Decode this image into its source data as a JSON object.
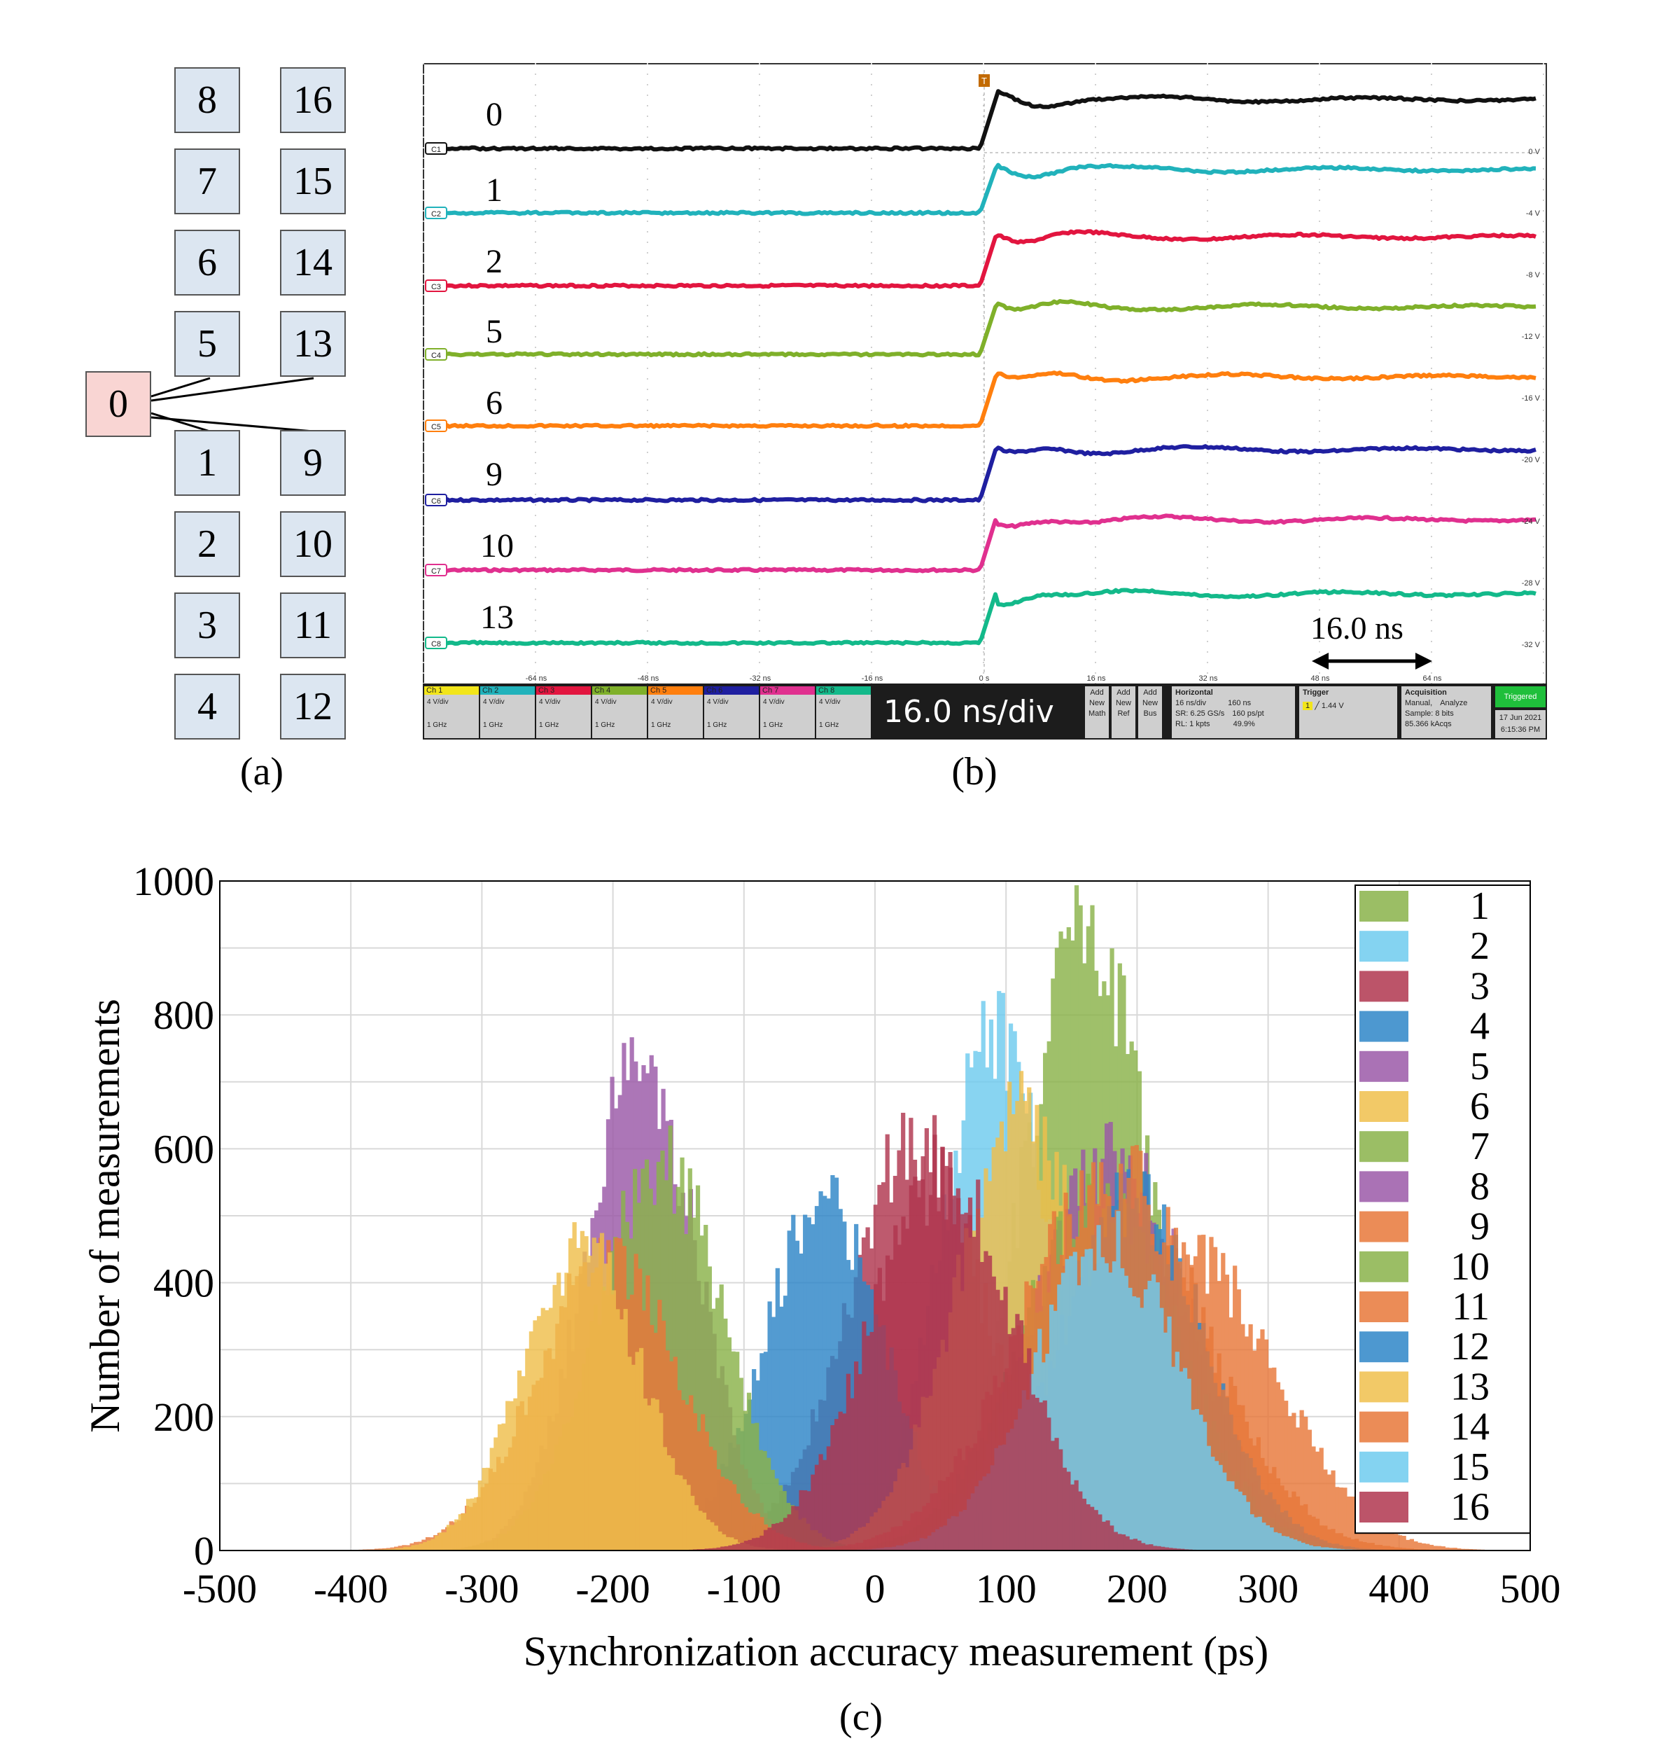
{
  "panel_a": {
    "caption": "(a)",
    "root_node": "0",
    "left_column": [
      "8",
      "7",
      "6",
      "5",
      "1",
      "2",
      "3",
      "4"
    ],
    "right_column": [
      "16",
      "15",
      "14",
      "13",
      "9",
      "10",
      "11",
      "12"
    ]
  },
  "panel_b": {
    "caption": "(b)",
    "trace_labels": [
      "0",
      "1",
      "2",
      "5",
      "6",
      "9",
      "10",
      "13"
    ],
    "channel_markers": [
      "C1",
      "C2",
      "C3",
      "C4",
      "C5",
      "C6",
      "C7",
      "C8"
    ],
    "trace_colors": [
      "#111111",
      "#21b2bb",
      "#e2153f",
      "#7fb02a",
      "#ff7f0e",
      "#1f1fa0",
      "#e0308f",
      "#13b98a"
    ],
    "volt_labels": [
      "0 V",
      "-4 V",
      "-8 V",
      "-12 V",
      "-16 V",
      "-20 V",
      "-24 V",
      "-28 V",
      "-32 V"
    ],
    "time_ticks": [
      "-64 ns",
      "-48 ns",
      "-32 ns",
      "-16 ns",
      "0 s",
      "16 ns",
      "32 ns",
      "48 ns",
      "64 ns"
    ],
    "scale_annotation": "16.0 ns",
    "trigger_marker": "T",
    "channels": [
      {
        "name": "Ch 1",
        "color": "#f2e51a",
        "vdiv": "4 V/div",
        "bw": "1 GHz"
      },
      {
        "name": "Ch 2",
        "color": "#21b2bb",
        "vdiv": "4 V/div",
        "bw": "1 GHz"
      },
      {
        "name": "Ch 3",
        "color": "#e2153f",
        "vdiv": "4 V/div",
        "bw": "1 GHz"
      },
      {
        "name": "Ch 4",
        "color": "#7fb02a",
        "vdiv": "4 V/div",
        "bw": "1 GHz"
      },
      {
        "name": "Ch 5",
        "color": "#ff7f0e",
        "vdiv": "4 V/div",
        "bw": "1 GHz"
      },
      {
        "name": "Ch 6",
        "color": "#1f1fa0",
        "vdiv": "4 V/div",
        "bw": "1 GHz"
      },
      {
        "name": "Ch 7",
        "color": "#e0308f",
        "vdiv": "4 V/div",
        "bw": "1 GHz"
      },
      {
        "name": "Ch 8",
        "color": "#13b98a",
        "vdiv": "4 V/div",
        "bw": "1 GHz"
      }
    ],
    "timebase": "16.0 ns/div",
    "add_buttons": [
      [
        "Add",
        "New",
        "Math"
      ],
      [
        "Add",
        "New",
        "Ref"
      ],
      [
        "Add",
        "New",
        "Bus"
      ]
    ],
    "horizontal": {
      "title": "Horizontal",
      "line1a": "16 ns/div",
      "line1b": "160 ns",
      "line2a": "SR: 6.25 GS/s",
      "line2b": "160 ps/pt",
      "line3a": "RL: 1 kpts",
      "line3b": "49.9%"
    },
    "trigger": {
      "title": "Trigger",
      "channel": "1",
      "level": "1.44 V"
    },
    "acquisition": {
      "title": "Acquisition",
      "line1": "Manual,",
      "line1b": "Analyze",
      "line2": "Sample: 8 bits",
      "line3": "85.366 kAcqs"
    },
    "status": {
      "state": "Triggered",
      "date": "17 Jun 2021",
      "time": "6:15:36 PM"
    }
  },
  "panel_c": {
    "caption": "(c)"
  },
  "chart_data": {
    "type": "histogram",
    "xlabel": "Synchronization accuracy measurement (ps)",
    "ylabel": "Number of measurements",
    "xlim": [
      -500,
      500
    ],
    "ylim": [
      0,
      1000
    ],
    "xticks": [
      "-500",
      "-400",
      "-300",
      "-200",
      "-100",
      "0",
      "100",
      "200",
      "300",
      "400",
      "500"
    ],
    "yticks": [
      "0",
      "200",
      "400",
      "600",
      "800",
      "1000"
    ],
    "grid": true,
    "legend_position": "right",
    "series": [
      {
        "name": "1",
        "color": "#8ab34a",
        "mean": 160,
        "sd": 48,
        "peak": 930
      },
      {
        "name": "2",
        "color": "#6ecbef",
        "mean": 90,
        "sd": 40,
        "peak": 800
      },
      {
        "name": "3",
        "color": "#b0364f",
        "mean": 30,
        "sd": 52,
        "peak": 610
      },
      {
        "name": "4",
        "color": "#2e86c8",
        "mean": -40,
        "sd": 45,
        "peak": 520
      },
      {
        "name": "5",
        "color": "#9b59a8",
        "mean": -180,
        "sd": 42,
        "peak": 730
      },
      {
        "name": "6",
        "color": "#f0bf4c",
        "mean": 110,
        "sd": 50,
        "peak": 640
      },
      {
        "name": "7",
        "color": "#8ab34a",
        "mean": -165,
        "sd": 48,
        "peak": 580
      },
      {
        "name": "8",
        "color": "#9b59a8",
        "mean": 180,
        "sd": 58,
        "peak": 590
      },
      {
        "name": "9",
        "color": "#e8783a",
        "mean": 240,
        "sd": 65,
        "peak": 440
      },
      {
        "name": "10",
        "color": "#8ab34a",
        "mean": 170,
        "sd": 60,
        "peak": 520
      },
      {
        "name": "11",
        "color": "#e8783a",
        "mean": -205,
        "sd": 55,
        "peak": 430
      },
      {
        "name": "12",
        "color": "#2e86c8",
        "mean": 195,
        "sd": 55,
        "peak": 520
      },
      {
        "name": "13",
        "color": "#f0bf4c",
        "mean": -225,
        "sd": 45,
        "peak": 450
      },
      {
        "name": "14",
        "color": "#e8783a",
        "mean": 180,
        "sd": 70,
        "peak": 560
      },
      {
        "name": "15",
        "color": "#6ecbef",
        "mean": 175,
        "sd": 55,
        "peak": 460
      },
      {
        "name": "16",
        "color": "#b0364f",
        "mean": 50,
        "sd": 55,
        "peak": 560
      }
    ]
  }
}
